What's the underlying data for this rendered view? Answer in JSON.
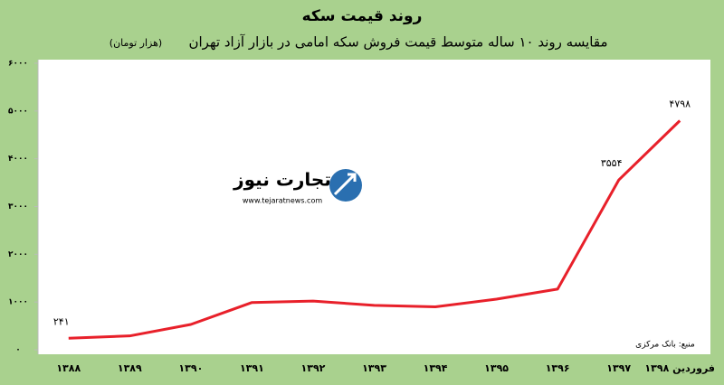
{
  "chart_data": {
    "type": "line",
    "title": "روند قیمت سکه",
    "subtitle": "مقایسه روند ۱۰ ساله متوسط قیمت فروش سکه امامی در بازار آزاد تهران",
    "unit": "(هزار تومان)",
    "source": "منبع: بانک مرکزی",
    "categories": [
      "۱۳۸۸",
      "۱۳۸۹",
      "۱۳۹۰",
      "۱۳۹۱",
      "۱۳۹۲",
      "۱۳۹۳",
      "۱۳۹۴",
      "۱۳۹۵",
      "۱۳۹۶",
      "۱۳۹۷",
      "فروردین ۱۳۹۸"
    ],
    "values": [
      241,
      290,
      530,
      990,
      1020,
      930,
      900,
      1060,
      1270,
      3554,
      4798
    ],
    "value_labels": [
      "۲۴۱",
      null,
      null,
      null,
      null,
      null,
      null,
      null,
      null,
      "۳۵۵۴",
      "۴۷۹۸"
    ],
    "color": "#e8202a",
    "ylim": [
      0,
      6000
    ],
    "yticks": [
      {
        "value": 0,
        "label": "۰"
      },
      {
        "value": 1000,
        "label": "۱۰۰۰"
      },
      {
        "value": 2000,
        "label": "۲۰۰۰"
      },
      {
        "value": 3000,
        "label": "۳۰۰۰"
      },
      {
        "value": 4000,
        "label": "۴۰۰۰"
      },
      {
        "value": 5000,
        "label": "۵۰۰۰"
      },
      {
        "value": 6000,
        "label": "۶۰۰۰"
      }
    ],
    "grid": false
  },
  "logo": {
    "name": "تجارت نیوز",
    "url": "www.tejaratnews.com"
  }
}
